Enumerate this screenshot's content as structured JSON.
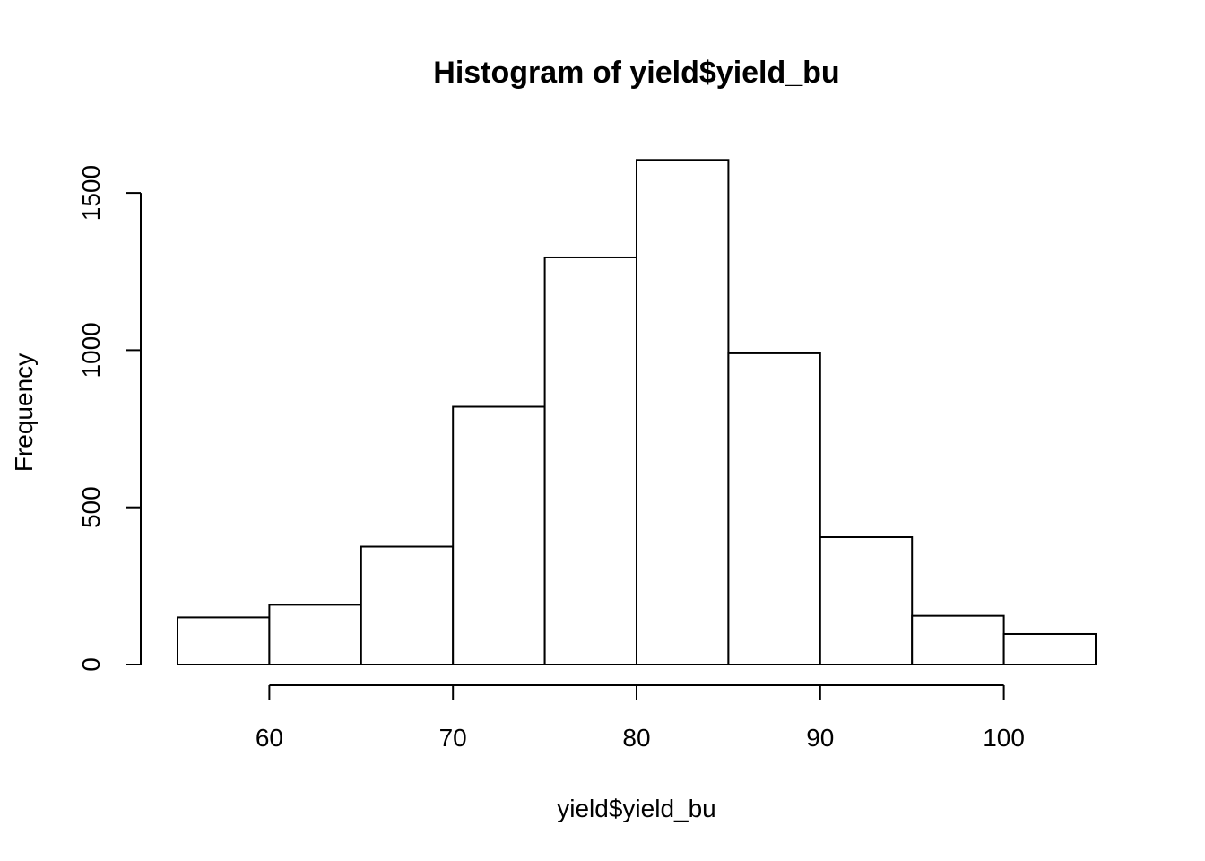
{
  "chart_data": {
    "type": "bar",
    "histogram": true,
    "title": "Histogram of yield$yield_bu",
    "xlabel": "yield$yield_bu",
    "ylabel": "Frequency",
    "bins": [
      {
        "start": 55,
        "end": 60,
        "count": 150
      },
      {
        "start": 60,
        "end": 65,
        "count": 190
      },
      {
        "start": 65,
        "end": 70,
        "count": 375
      },
      {
        "start": 70,
        "end": 75,
        "count": 820
      },
      {
        "start": 75,
        "end": 80,
        "count": 1295
      },
      {
        "start": 80,
        "end": 85,
        "count": 1605
      },
      {
        "start": 85,
        "end": 90,
        "count": 990
      },
      {
        "start": 90,
        "end": 95,
        "count": 405
      },
      {
        "start": 95,
        "end": 100,
        "count": 155
      },
      {
        "start": 100,
        "end": 105,
        "count": 97
      }
    ],
    "x_ticks": [
      60,
      70,
      80,
      90,
      100
    ],
    "y_ticks": [
      0,
      500,
      1000,
      1500
    ],
    "x_tick_labels": [
      "60",
      "70",
      "80",
      "90",
      "100"
    ],
    "y_tick_labels": [
      "0",
      "500",
      "1000",
      "1500"
    ],
    "xlim": [
      55,
      105
    ],
    "ylim": [
      0,
      1600
    ],
    "grid": false,
    "bar_fill": "#ffffff",
    "bar_stroke": "#000000"
  }
}
